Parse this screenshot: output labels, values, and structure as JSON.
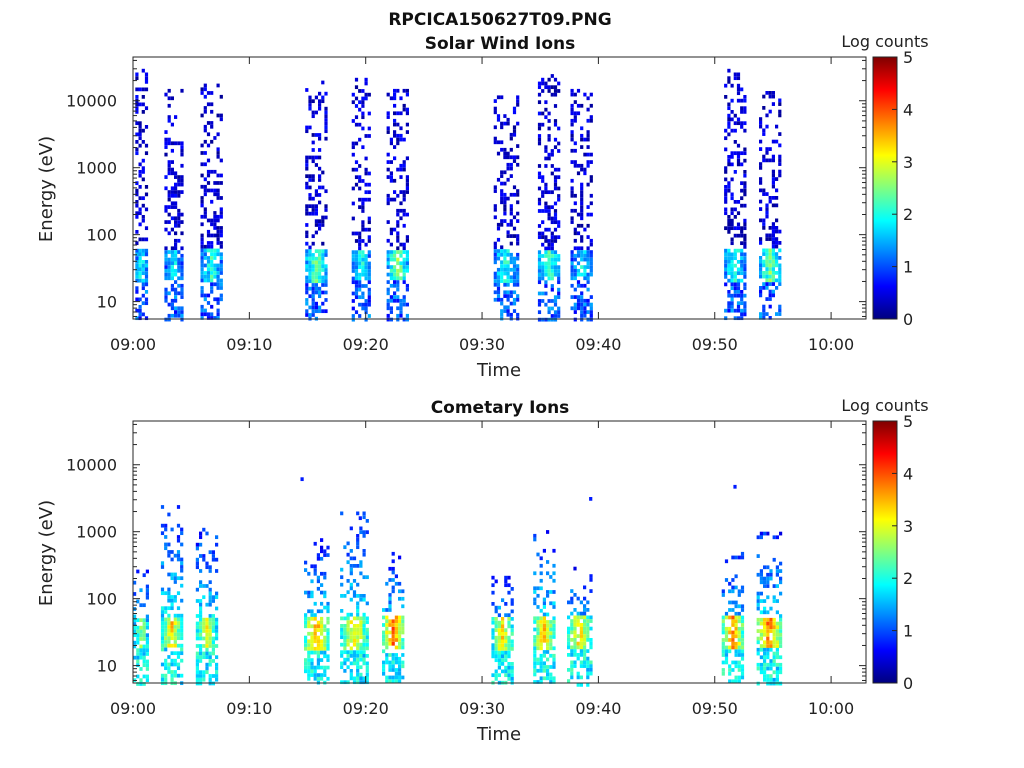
{
  "figure": {
    "title": "RPCICA150627T09.PNG",
    "colorbar_colors": [
      "#00007f",
      "#0000ff",
      "#0080ff",
      "#00ffff",
      "#80ff80",
      "#ffff00",
      "#ff8000",
      "#ff0000",
      "#7f0000"
    ]
  },
  "chart_data": [
    {
      "type": "heatmap",
      "title": "Solar Wind Ions",
      "xlabel": "Time",
      "ylabel": "Energy (eV)",
      "xlim": [
        "09:00",
        "10:03"
      ],
      "xticks": [
        "09:00",
        "09:10",
        "09:20",
        "09:30",
        "09:40",
        "09:50",
        "10:00"
      ],
      "ylim": [
        5.5,
        45000
      ],
      "yscale": "log",
      "yticks": [
        "10",
        "100",
        "1000",
        "10000"
      ],
      "colorbar": {
        "label": "Log counts",
        "range": [
          0,
          5
        ],
        "ticks": [
          "0",
          "1",
          "2",
          "3",
          "4",
          "5"
        ]
      },
      "bursts": [
        {
          "start": "09:00.2",
          "end": "09:01.2",
          "emax": 30000,
          "core_level": 2.0
        },
        {
          "start": "09:02.7",
          "end": "09:04.3",
          "emax": 15000,
          "core_level": 1.8
        },
        {
          "start": "09:05.8",
          "end": "09:07.6",
          "emax": 18000,
          "core_level": 2.0
        },
        {
          "start": "09:14.8",
          "end": "09:16.8",
          "emax": 20000,
          "core_level": 2.4
        },
        {
          "start": "09:18.8",
          "end": "09:20.5",
          "emax": 22000,
          "core_level": 2.0
        },
        {
          "start": "09:21.8",
          "end": "09:23.8",
          "emax": 15000,
          "core_level": 2.5
        },
        {
          "start": "09:31.0",
          "end": "09:33.2",
          "emax": 12000,
          "core_level": 2.0
        },
        {
          "start": "09:34.8",
          "end": "09:36.6",
          "emax": 25000,
          "core_level": 2.2
        },
        {
          "start": "09:37.6",
          "end": "09:39.6",
          "emax": 15000,
          "core_level": 1.8
        },
        {
          "start": "09:50.8",
          "end": "09:52.6",
          "emax": 30000,
          "core_level": 2.0
        },
        {
          "start": "09:53.8",
          "end": "09:55.7",
          "emax": 14000,
          "core_level": 2.4
        }
      ]
    },
    {
      "type": "heatmap",
      "title": "Cometary Ions",
      "xlabel": "Time",
      "ylabel": "Energy (eV)",
      "xlim": [
        "09:00",
        "10:03"
      ],
      "xticks": [
        "09:00",
        "09:10",
        "09:20",
        "09:30",
        "09:40",
        "09:50",
        "10:00"
      ],
      "ylim": [
        5.5,
        45000
      ],
      "yscale": "log",
      "yticks": [
        "10",
        "100",
        "1000",
        "10000"
      ],
      "colorbar": {
        "label": "Log counts",
        "range": [
          0,
          5
        ],
        "ticks": [
          "0",
          "1",
          "2",
          "3",
          "4",
          "5"
        ]
      },
      "bursts": [
        {
          "start": "09:00.0",
          "end": "09:01.4",
          "emax": 400,
          "core_level": 2.6
        },
        {
          "start": "09:02.4",
          "end": "09:04.4",
          "emax": 2500,
          "core_level": 3.3
        },
        {
          "start": "09:05.4",
          "end": "09:07.2",
          "emax": 1300,
          "core_level": 3.0
        },
        {
          "start": "09:14.7",
          "end": "09:17.0",
          "emax": 800,
          "core_level": 3.6
        },
        {
          "start": "09:17.8",
          "end": "09:20.4",
          "emax": 2000,
          "core_level": 3.2
        },
        {
          "start": "09:21.4",
          "end": "09:23.3",
          "emax": 500,
          "core_level": 3.8
        },
        {
          "start": "09:30.8",
          "end": "09:32.8",
          "emax": 250,
          "core_level": 3.2
        },
        {
          "start": "09:34.4",
          "end": "09:36.3",
          "emax": 1200,
          "core_level": 3.4
        },
        {
          "start": "09:37.3",
          "end": "09:39.4",
          "emax": 300,
          "core_level": 3.2
        },
        {
          "start": "09:50.6",
          "end": "09:52.6",
          "emax": 500,
          "core_level": 3.7
        },
        {
          "start": "09:53.6",
          "end": "09:55.8",
          "emax": 1000,
          "core_level": 3.9
        }
      ],
      "isolated_points": [
        {
          "time": "09:14.4",
          "energy": 6500
        },
        {
          "time": "09:19.4",
          "energy": 1700
        },
        {
          "time": "09:39.2",
          "energy": 3300
        },
        {
          "time": "09:51.6",
          "energy": 5000
        }
      ]
    }
  ]
}
